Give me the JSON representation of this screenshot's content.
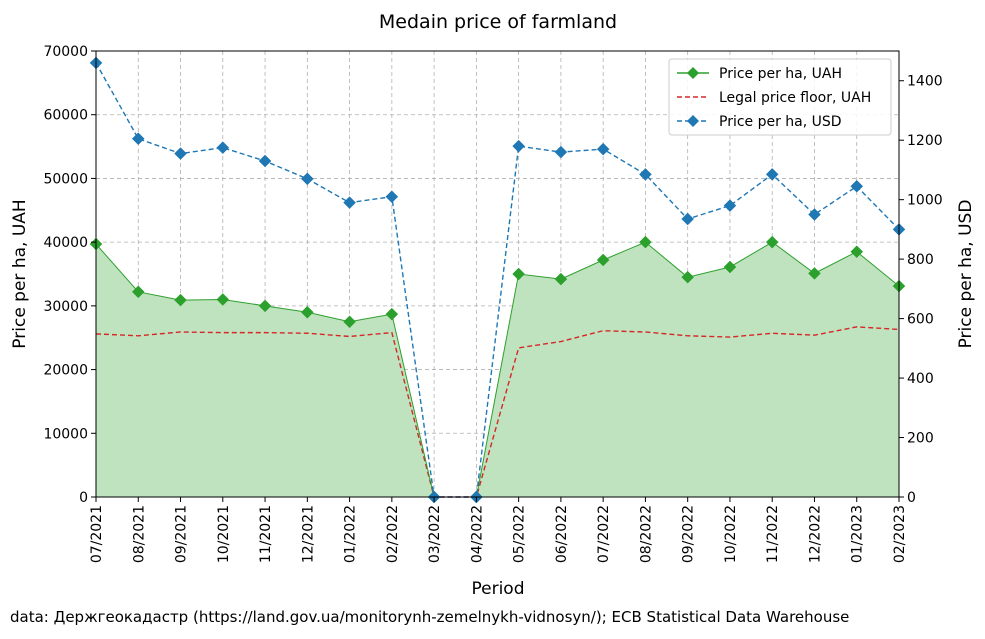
{
  "chart_data": {
    "type": "line",
    "title": "Medain price of farmland",
    "xlabel": "Period",
    "ylabel": "Price per ha, UAH",
    "ylabel_right": "Price per ha, USD",
    "ylim": [
      0,
      70000
    ],
    "ylim_right": [
      0,
      1500
    ],
    "yticks": [
      "0",
      "10000",
      "20000",
      "30000",
      "40000",
      "50000",
      "60000",
      "70000"
    ],
    "yticks_right": [
      "0",
      "200",
      "400",
      "600",
      "800",
      "1000",
      "1200",
      "1400"
    ],
    "grid": true,
    "legend_position": "top-right",
    "categories": [
      "07/2021",
      "08/2021",
      "09/2021",
      "10/2021",
      "11/2021",
      "12/2021",
      "01/2022",
      "02/2022",
      "03/2022",
      "04/2022",
      "05/2022",
      "06/2022",
      "07/2022",
      "08/2022",
      "09/2022",
      "10/2022",
      "11/2022",
      "12/2022",
      "01/2023",
      "02/2023"
    ],
    "series": [
      {
        "name": "Price per ha, UAH",
        "axis": "left",
        "color": "#2ca02c",
        "fill": "#bfe3bf",
        "style": "solid",
        "marker": "diamond",
        "values": [
          39700,
          32200,
          30900,
          31000,
          30000,
          29000,
          27500,
          28700,
          0,
          0,
          35000,
          34200,
          37200,
          40000,
          34500,
          36100,
          40000,
          35100,
          38500,
          33100
        ]
      },
      {
        "name": "Legal price floor, UAH",
        "axis": "left",
        "color": "#d62728",
        "style": "dashed",
        "marker": "none",
        "values": [
          25600,
          25300,
          25900,
          25800,
          25800,
          25700,
          25200,
          25800,
          0,
          0,
          23400,
          24400,
          26100,
          25900,
          25300,
          25100,
          25700,
          25400,
          26700,
          26300
        ]
      },
      {
        "name": "Price per ha, USD",
        "axis": "right",
        "color": "#1f77b4",
        "style": "dashed",
        "marker": "diamond",
        "values": [
          1460,
          1205,
          1155,
          1175,
          1130,
          1070,
          990,
          1010,
          0,
          0,
          1180,
          1160,
          1170,
          1085,
          935,
          980,
          1085,
          950,
          1045,
          900
        ]
      }
    ]
  },
  "footer": {
    "source": "data: Держгеокадастр (https://land.gov.ua/monitorynh-zemelnykh-vidnosyn/); ECB Statistical Data Warehouse"
  }
}
